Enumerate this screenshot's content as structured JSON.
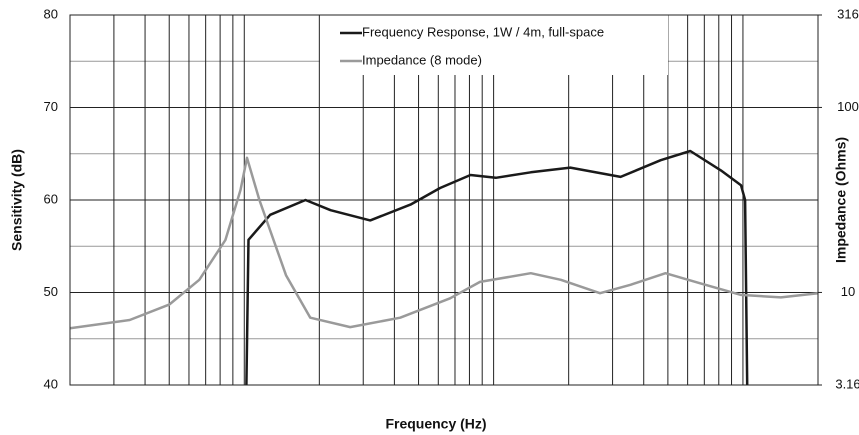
{
  "chart_data": {
    "type": "line",
    "x_label": "Frequency (Hz)",
    "y_label": "Sensitivity (dB)",
    "y2_label": "Impedance (Ohms)",
    "xscale": "log",
    "xlim": [
      20,
      20000
    ],
    "xgrid": [
      20,
      30,
      40,
      50,
      60,
      70,
      80,
      90,
      100,
      200,
      300,
      400,
      500,
      600,
      700,
      800,
      900,
      1000,
      2000,
      3000,
      4000,
      5000,
      6000,
      7000,
      8000,
      9000,
      10000,
      20000
    ],
    "ylim": [
      40,
      80
    ],
    "yticks": [
      40,
      50,
      60,
      70,
      80
    ],
    "yminorgrid": [
      45,
      55,
      65,
      75
    ],
    "y2scale": "log",
    "y2lim": [
      3.16,
      316
    ],
    "y2ticks": [
      3.16,
      10,
      100,
      316
    ],
    "legend": "top-center",
    "series": [
      {
        "name": "Frequency Response, 1W / 4m, full-space",
        "color": "#1a1a1a",
        "x": [
          102,
          104,
          127,
          176,
          222,
          320,
          464,
          610,
          808,
          1020,
          1410,
          2030,
          3230,
          4680,
          6150,
          8160,
          9820,
          10200,
          10400
        ],
        "values": [
          40,
          55.7,
          58.4,
          60,
          58.9,
          57.8,
          59.5,
          61.3,
          62.7,
          62.4,
          63,
          63.5,
          62.5,
          64.3,
          65.3,
          63.2,
          61.6,
          60,
          40
        ]
      },
      {
        "name": "Impedance (8 mode)",
        "color": "#9a9a9a",
        "axis": "y2",
        "x": [
          20,
          34.7,
          50,
          66,
          84,
          96.6,
          102.5,
          115,
          147,
          184,
          266,
          422,
          669,
          882,
          1410,
          1860,
          2670,
          3540,
          4890,
          6740,
          9820,
          14200,
          20000
        ],
        "values": [
          6.4,
          7.1,
          8.6,
          11.7,
          19.2,
          35.8,
          53.4,
          31.6,
          12.4,
          7.3,
          6.5,
          7.3,
          9.3,
          11.4,
          12.7,
          11.7,
          9.9,
          11.0,
          12.7,
          11.2,
          9.7,
          9.4,
          9.9
        ]
      }
    ]
  }
}
